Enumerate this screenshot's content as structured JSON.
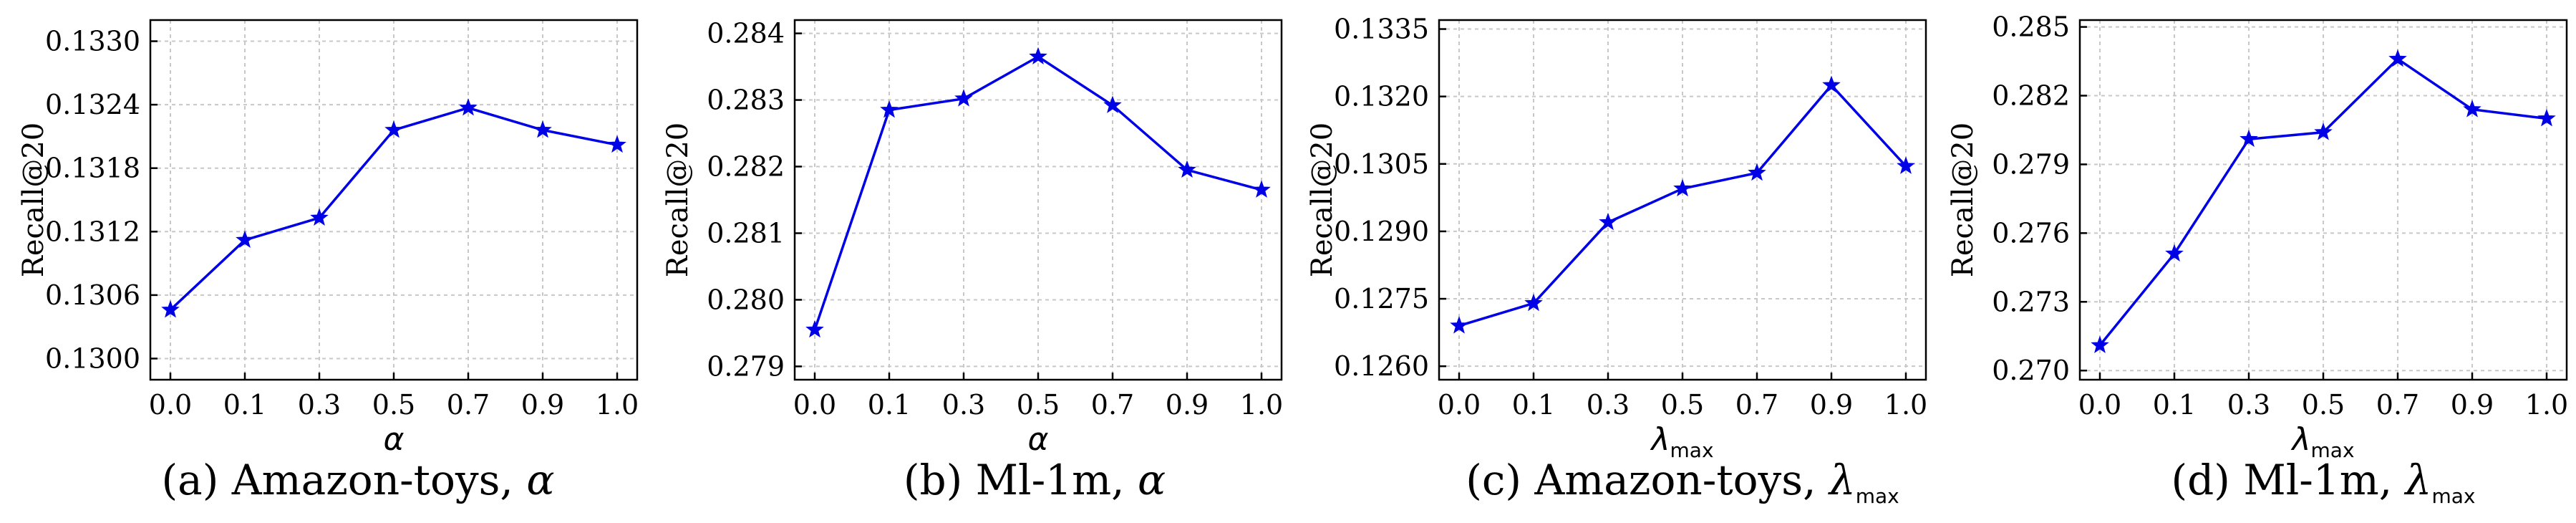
{
  "chart_data": [
    {
      "type": "line",
      "caption": {
        "prefix": "(a) Amazon-toys, ",
        "symbol": "α",
        "subscript": ""
      },
      "xlabel": "α",
      "xlabel_sub": "",
      "ylabel": "Recall@20",
      "x_categories": [
        "0.0",
        "0.1",
        "0.3",
        "0.5",
        "0.7",
        "0.9",
        "1.0"
      ],
      "y_ticks": [
        "0.1300",
        "0.1306",
        "0.1312",
        "0.1318",
        "0.1324",
        "0.1330"
      ],
      "ylim": [
        0.1298,
        0.1332
      ],
      "values": [
        0.13046,
        0.13112,
        0.13133,
        0.13216,
        0.13237,
        0.13216,
        0.13202
      ],
      "grid": true,
      "color": "#0000e6"
    },
    {
      "type": "line",
      "caption": {
        "prefix": "(b) Ml-1m, ",
        "symbol": "α",
        "subscript": ""
      },
      "xlabel": "α",
      "xlabel_sub": "",
      "ylabel": "Recall@20",
      "x_categories": [
        "0.0",
        "0.1",
        "0.3",
        "0.5",
        "0.7",
        "0.9",
        "1.0"
      ],
      "y_ticks": [
        "0.279",
        "0.280",
        "0.281",
        "0.282",
        "0.283",
        "0.284"
      ],
      "ylim": [
        0.2788,
        0.2842
      ],
      "values": [
        0.27955,
        0.28285,
        0.28302,
        0.28365,
        0.28292,
        0.28195,
        0.28165
      ],
      "grid": true,
      "color": "#0000e6"
    },
    {
      "type": "line",
      "caption": {
        "prefix": "(c) Amazon-toys, ",
        "symbol": "λ",
        "subscript": "max"
      },
      "xlabel": "λ",
      "xlabel_sub": "max",
      "ylabel": "Recall@20",
      "x_categories": [
        "0.0",
        "0.1",
        "0.3",
        "0.5",
        "0.7",
        "0.9",
        "1.0"
      ],
      "y_ticks": [
        "0.1260",
        "0.1275",
        "0.1290",
        "0.1305",
        "0.1320",
        "0.1335"
      ],
      "ylim": [
        0.1257,
        0.1337
      ],
      "values": [
        0.1269,
        0.1274,
        0.1292,
        0.12995,
        0.1303,
        0.13225,
        0.13045
      ],
      "grid": true,
      "color": "#0000e6"
    },
    {
      "type": "line",
      "caption": {
        "prefix": "(d) Ml-1m, ",
        "symbol": "λ",
        "subscript": "max"
      },
      "xlabel": "λ",
      "xlabel_sub": "max",
      "ylabel": "Recall@20",
      "x_categories": [
        "0.0",
        "0.1",
        "0.3",
        "0.5",
        "0.7",
        "0.9",
        "1.0"
      ],
      "y_ticks": [
        "0.270",
        "0.273",
        "0.276",
        "0.279",
        "0.282",
        "0.285"
      ],
      "ylim": [
        0.2696,
        0.2853
      ],
      "values": [
        0.2711,
        0.2751,
        0.2801,
        0.2804,
        0.2836,
        0.2814,
        0.281
      ],
      "grid": true,
      "color": "#0000e6"
    }
  ]
}
